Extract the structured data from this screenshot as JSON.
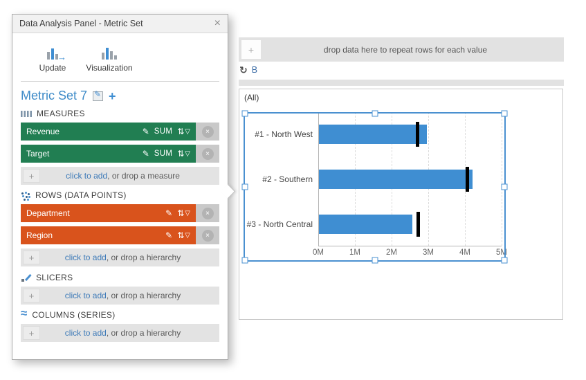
{
  "panel": {
    "title": "Data Analysis Panel - Metric Set",
    "toolbar": {
      "update_label": "Update",
      "visualization_label": "Visualization"
    },
    "metric_set": {
      "title": "Metric Set 7"
    },
    "sections": {
      "measures": {
        "header": "MEASURES",
        "rows": [
          {
            "label": "Revenue",
            "aggregator": "SUM"
          },
          {
            "label": "Target",
            "aggregator": "SUM"
          }
        ],
        "add_link": "click to add",
        "add_rest": ", or drop a measure"
      },
      "rows": {
        "header": "ROWS (DATA POINTS)",
        "rows": [
          {
            "label": "Department"
          },
          {
            "label": "Region"
          }
        ],
        "add_link": "click to add",
        "add_rest": ", or drop a hierarchy"
      },
      "slicers": {
        "header": "SLICERS",
        "add_link": "click to add",
        "add_rest": ", or drop a hierarchy"
      },
      "columns": {
        "header": "COLUMNS (SERIES)",
        "add_link": "click to add",
        "add_rest": ", or drop a hierarchy"
      }
    }
  },
  "canvas": {
    "drop_strip_text": "drop data here to repeat rows for each value",
    "group_label": "B",
    "all_label": "(All)"
  },
  "icons": {
    "close": "×",
    "plus": "+",
    "pencil": "✎",
    "sort": "⇅",
    "funnel": "▽",
    "loop": "↻",
    "wave": "≈",
    "arrow": "→"
  },
  "colors": {
    "measure_green": "#217e52",
    "dimension_orange": "#d9531c",
    "bar_blue": "#3f8ed2",
    "selection_blue": "#4a90d0",
    "link_blue": "#3d7ab8",
    "metric_title_blue": "#3e8bc8"
  },
  "chart_data": {
    "type": "bar",
    "orientation": "horizontal",
    "title": "",
    "xlabel": "",
    "ylabel": "",
    "categories": [
      "#1 - North West",
      "#2 - Southern",
      "#3 - North Central"
    ],
    "series": [
      {
        "name": "Revenue",
        "style": "bar",
        "color": "#3f8ed2",
        "values": [
          2950000,
          4180000,
          2550000
        ]
      },
      {
        "name": "Target",
        "style": "target-line",
        "color": "#000000",
        "values": [
          2680000,
          4050000,
          2700000
        ]
      }
    ],
    "xlim": [
      0,
      5000000
    ],
    "x_ticks": [
      "0M",
      "1M",
      "2M",
      "3M",
      "4M",
      "5M"
    ],
    "grid": "dashed-vertical",
    "legend_position": "none"
  }
}
